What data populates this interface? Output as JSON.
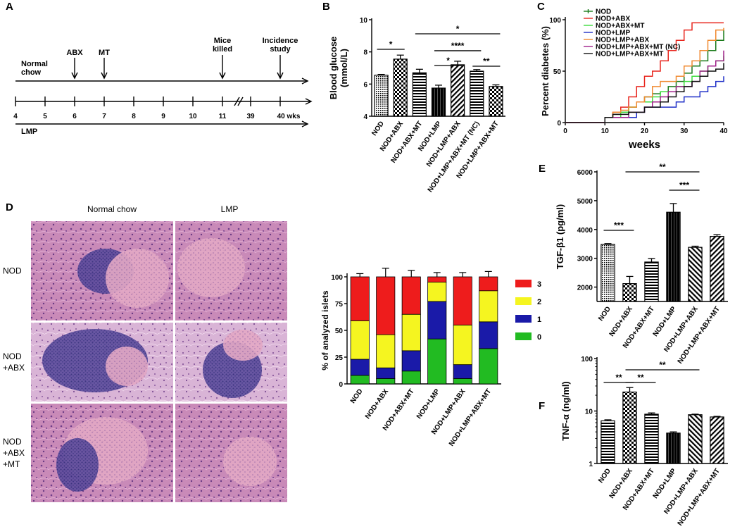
{
  "panels": {
    "a": {
      "letter": "A",
      "chow_label_line1": "Normal",
      "chow_label_line2": "chow",
      "abx_label": "ABX",
      "mt_label": "MT",
      "killed_line1": "Mice",
      "killed_line2": "killed",
      "incidence_line1": "Incidence",
      "incidence_line2": "study",
      "ticks": [
        "4",
        "5",
        "6",
        "7",
        "8",
        "9",
        "10",
        "11",
        "39",
        "40 wks"
      ],
      "lmp_label": "LMP"
    },
    "d": {
      "letter": "D",
      "col_labels": [
        "Normal chow",
        "LMP"
      ],
      "row_labels": [
        [
          "NOD"
        ],
        [
          "NOD",
          "+ABX"
        ],
        [
          "NOD",
          "+ABX",
          "+MT"
        ]
      ]
    }
  },
  "chart_data": [
    {
      "panel": "B",
      "type": "bar",
      "ylabel": "Blood glucose (mmol/L)",
      "ylabel_lines": [
        "Blood glucose",
        "(mmol/L)"
      ],
      "ylim": [
        4,
        10
      ],
      "yticks": [
        "4",
        "6",
        "8",
        "10"
      ],
      "categories": [
        "NOD",
        "NOD+ABX",
        "NOD+ABX+MT",
        "NOD+LMP",
        "NOD+LMP+ABX",
        "NOD+LMP+ABX+MT (NC)",
        "NOD+LMP+ABX+MT"
      ],
      "values": [
        6.55,
        7.55,
        6.7,
        5.75,
        7.2,
        6.8,
        5.85
      ],
      "errors": [
        0.05,
        0.25,
        0.22,
        0.18,
        0.22,
        0.1,
        0.1
      ],
      "significance": [
        {
          "from": 0,
          "to": 1,
          "label": "*"
        },
        {
          "from": 3,
          "to": 4,
          "label": "*"
        },
        {
          "from": 3,
          "to": 5,
          "label": "****"
        },
        {
          "from": 3,
          "to": 5,
          "label": "**"
        },
        {
          "from": 5,
          "to": 6,
          "label": "**"
        },
        {
          "from": 2,
          "to": 6,
          "label": "*"
        }
      ]
    },
    {
      "panel": "C",
      "type": "line",
      "ylabel": "Percent diabetes (%)",
      "xlabel": "weeks",
      "xlim": [
        0,
        40
      ],
      "ylim": [
        0,
        100
      ],
      "xticks": [
        "0",
        "10",
        "20",
        "30",
        "40"
      ],
      "yticks": [
        "0",
        "50",
        "100"
      ],
      "series": [
        {
          "name": "NOD",
          "color": "#1a7a1a",
          "x": [
            0,
            10,
            12,
            14,
            16,
            18,
            20,
            22,
            24,
            26,
            28,
            30,
            32,
            34,
            36,
            38,
            40
          ],
          "y": [
            0,
            5,
            8,
            10,
            15,
            20,
            25,
            28,
            30,
            35,
            40,
            48,
            55,
            60,
            70,
            80,
            90
          ]
        },
        {
          "name": "NOD+ABX",
          "color": "#e8261e",
          "x": [
            0,
            10,
            12,
            14,
            16,
            18,
            20,
            22,
            24,
            26,
            28,
            30,
            32,
            40
          ],
          "y": [
            0,
            5,
            10,
            15,
            25,
            35,
            45,
            50,
            60,
            70,
            80,
            90,
            97,
            97
          ]
        },
        {
          "name": "NOD+ABX+MT",
          "color": "#3ddc3d",
          "x": [
            0,
            10,
            12,
            14,
            16,
            18,
            20,
            22,
            24,
            26,
            28,
            30,
            32,
            34,
            36,
            38,
            40
          ],
          "y": [
            0,
            5,
            5,
            10,
            15,
            20,
            20,
            25,
            30,
            30,
            35,
            40,
            45,
            50,
            55,
            60,
            65
          ]
        },
        {
          "name": "NOD+LMP",
          "color": "#2030c8",
          "x": [
            0,
            10,
            14,
            18,
            20,
            24,
            28,
            30,
            32,
            34,
            36,
            38,
            40
          ],
          "y": [
            0,
            5,
            5,
            10,
            15,
            15,
            20,
            25,
            25,
            30,
            35,
            40,
            45
          ]
        },
        {
          "name": "NOD+LMP+ABX",
          "color": "#f08a30",
          "x": [
            0,
            10,
            12,
            14,
            16,
            18,
            20,
            22,
            24,
            26,
            28,
            30,
            32,
            34,
            36,
            38,
            40
          ],
          "y": [
            0,
            5,
            10,
            12,
            15,
            20,
            25,
            35,
            40,
            40,
            45,
            55,
            60,
            70,
            80,
            90,
            92
          ]
        },
        {
          "name": "NOD+LMP+ABX+MT (NC)",
          "color": "#a0208a",
          "x": [
            0,
            10,
            14,
            16,
            20,
            22,
            24,
            26,
            28,
            30,
            32,
            34,
            36,
            38,
            40
          ],
          "y": [
            0,
            5,
            5,
            10,
            15,
            20,
            25,
            30,
            35,
            35,
            40,
            50,
            55,
            60,
            70
          ]
        },
        {
          "name": "NOD+LMP+ABX+MT",
          "color": "#111111",
          "x": [
            0,
            10,
            12,
            16,
            20,
            24,
            26,
            28,
            30,
            32,
            34,
            36,
            38,
            40
          ],
          "y": [
            0,
            5,
            8,
            10,
            15,
            20,
            25,
            30,
            35,
            40,
            45,
            50,
            52,
            58
          ]
        }
      ]
    },
    {
      "panel": "D",
      "type": "bar",
      "stacked": true,
      "ylabel": "% of analyzed islets",
      "ylim": [
        0,
        100
      ],
      "yticks": [
        "0",
        "25",
        "50",
        "75",
        "100"
      ],
      "categories": [
        "NOD",
        "NOD+ABX",
        "NOD+ABX+MT",
        "NOD+LMP",
        "NOD+LMP+ABX",
        "NOD+LMP+ABX+MT"
      ],
      "series": [
        {
          "name": "0",
          "color": "#22bb22",
          "values": [
            8,
            5,
            12,
            42,
            5,
            33
          ]
        },
        {
          "name": "1",
          "color": "#1a1aa8",
          "values": [
            15,
            10,
            19,
            35,
            13,
            25
          ]
        },
        {
          "name": "2",
          "color": "#f5f520",
          "values": [
            36,
            31,
            34,
            18,
            37,
            29
          ]
        },
        {
          "name": "3",
          "color": "#ee1c1c",
          "values": [
            41,
            54,
            35,
            5,
            45,
            13
          ]
        }
      ],
      "errors": [
        [
          3,
          2,
          3,
          4,
          2,
          3
        ],
        [
          4,
          3,
          4,
          4,
          5,
          3
        ],
        [
          6,
          6,
          4,
          4,
          6,
          5
        ],
        [
          3,
          8,
          6,
          4,
          4,
          5
        ]
      ]
    },
    {
      "panel": "E",
      "type": "bar",
      "ylabel": "TGF-β1 (pg/ml)",
      "ylim": [
        1500,
        6000
      ],
      "yticks": [
        "2000",
        "3000",
        "4000",
        "5000",
        "6000"
      ],
      "categories": [
        "NOD",
        "NOD+ABX",
        "NOD+ABX+MT",
        "NOD+LMP",
        "NOD+LMP+ABX",
        "NOD+LMP+ABX+MT"
      ],
      "values": [
        3480,
        2120,
        2870,
        4600,
        3380,
        3760
      ],
      "errors": [
        30,
        250,
        120,
        300,
        40,
        60
      ],
      "significance": [
        {
          "from": 0,
          "to": 1,
          "label": "***"
        },
        {
          "from": 3,
          "to": 4,
          "label": "***"
        },
        {
          "from": 1,
          "to": 4,
          "label": "**"
        }
      ]
    },
    {
      "panel": "F",
      "type": "bar",
      "log_scale": true,
      "ylabel": "TNF-α (ng/ml)",
      "ylim": [
        1,
        100
      ],
      "yticks": [
        "1",
        "10",
        "100"
      ],
      "categories": [
        "NOD",
        "NOD+ABX",
        "NOD+ABX+MT",
        "NOD+LMP",
        "NOD+LMP+ABX",
        "NOD+LMP+ABX+MT"
      ],
      "values": [
        6.5,
        23,
        8.7,
        3.8,
        8.5,
        7.7
      ],
      "errors": [
        0.3,
        5,
        0.5,
        0.2,
        0.2,
        0.2
      ],
      "significance": [
        {
          "from": 0,
          "to": 1,
          "label": "**"
        },
        {
          "from": 1,
          "to": 2,
          "label": "**"
        },
        {
          "from": 1,
          "to": 4,
          "label": "**"
        }
      ]
    }
  ]
}
